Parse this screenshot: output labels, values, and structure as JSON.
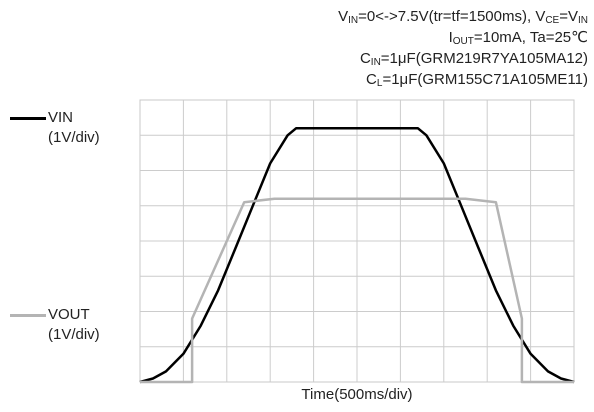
{
  "conditions": {
    "line1": {
      "p1": "V",
      "p1_sub": "IN",
      "p2": "=0<->7.5V(tr=tf=1500ms),  V",
      "p2_sub": "CE",
      "p3": "=V",
      "p3_sub": "IN"
    },
    "line2": {
      "p1": "I",
      "p1_sub": "OUT",
      "p2": "=10mA, Ta=25℃"
    },
    "line3": {
      "p1": "C",
      "p1_sub": "IN",
      "p2": "=1μF(GRM219R7YA105MA12)"
    },
    "line4": {
      "p1": "C",
      "p1_sub": "L",
      "p2": "=1μF(GRM155C71A105ME11)"
    }
  },
  "legend": {
    "vin": {
      "name": "VIN",
      "scale": "(1V/div)",
      "color": "#000000"
    },
    "vout": {
      "name": "VOUT",
      "scale": "(1V/div)",
      "color": "#b4b4b4"
    }
  },
  "chart_data": {
    "type": "line",
    "xlabel": "Time(500ms/div)",
    "ylabel": "",
    "x_divisions": 10,
    "y_divisions": 8,
    "xlim": [
      0,
      10
    ],
    "ylim": [
      0,
      8
    ],
    "grid": true,
    "series": [
      {
        "name": "VIN",
        "color": "#000000",
        "x": [
          0,
          0.3,
          0.6,
          1.0,
          1.4,
          1.8,
          2.2,
          2.6,
          3.0,
          3.4,
          3.6,
          6.4,
          6.6,
          7.0,
          7.4,
          7.8,
          8.2,
          8.6,
          9.0,
          9.4,
          9.7,
          10.0
        ],
        "y": [
          0,
          0.1,
          0.3,
          0.8,
          1.6,
          2.6,
          3.8,
          5.0,
          6.2,
          7.0,
          7.2,
          7.2,
          7.0,
          6.2,
          5.0,
          3.8,
          2.6,
          1.6,
          0.8,
          0.3,
          0.1,
          0
        ]
      },
      {
        "name": "VOUT",
        "color": "#b4b4b4",
        "x": [
          0,
          1.2,
          1.2,
          2.4,
          3.1,
          7.5,
          8.2,
          8.8,
          8.8,
          10.0
        ],
        "y": [
          0,
          0,
          1.8,
          5.1,
          5.2,
          5.2,
          5.1,
          1.8,
          0,
          0
        ]
      }
    ]
  }
}
